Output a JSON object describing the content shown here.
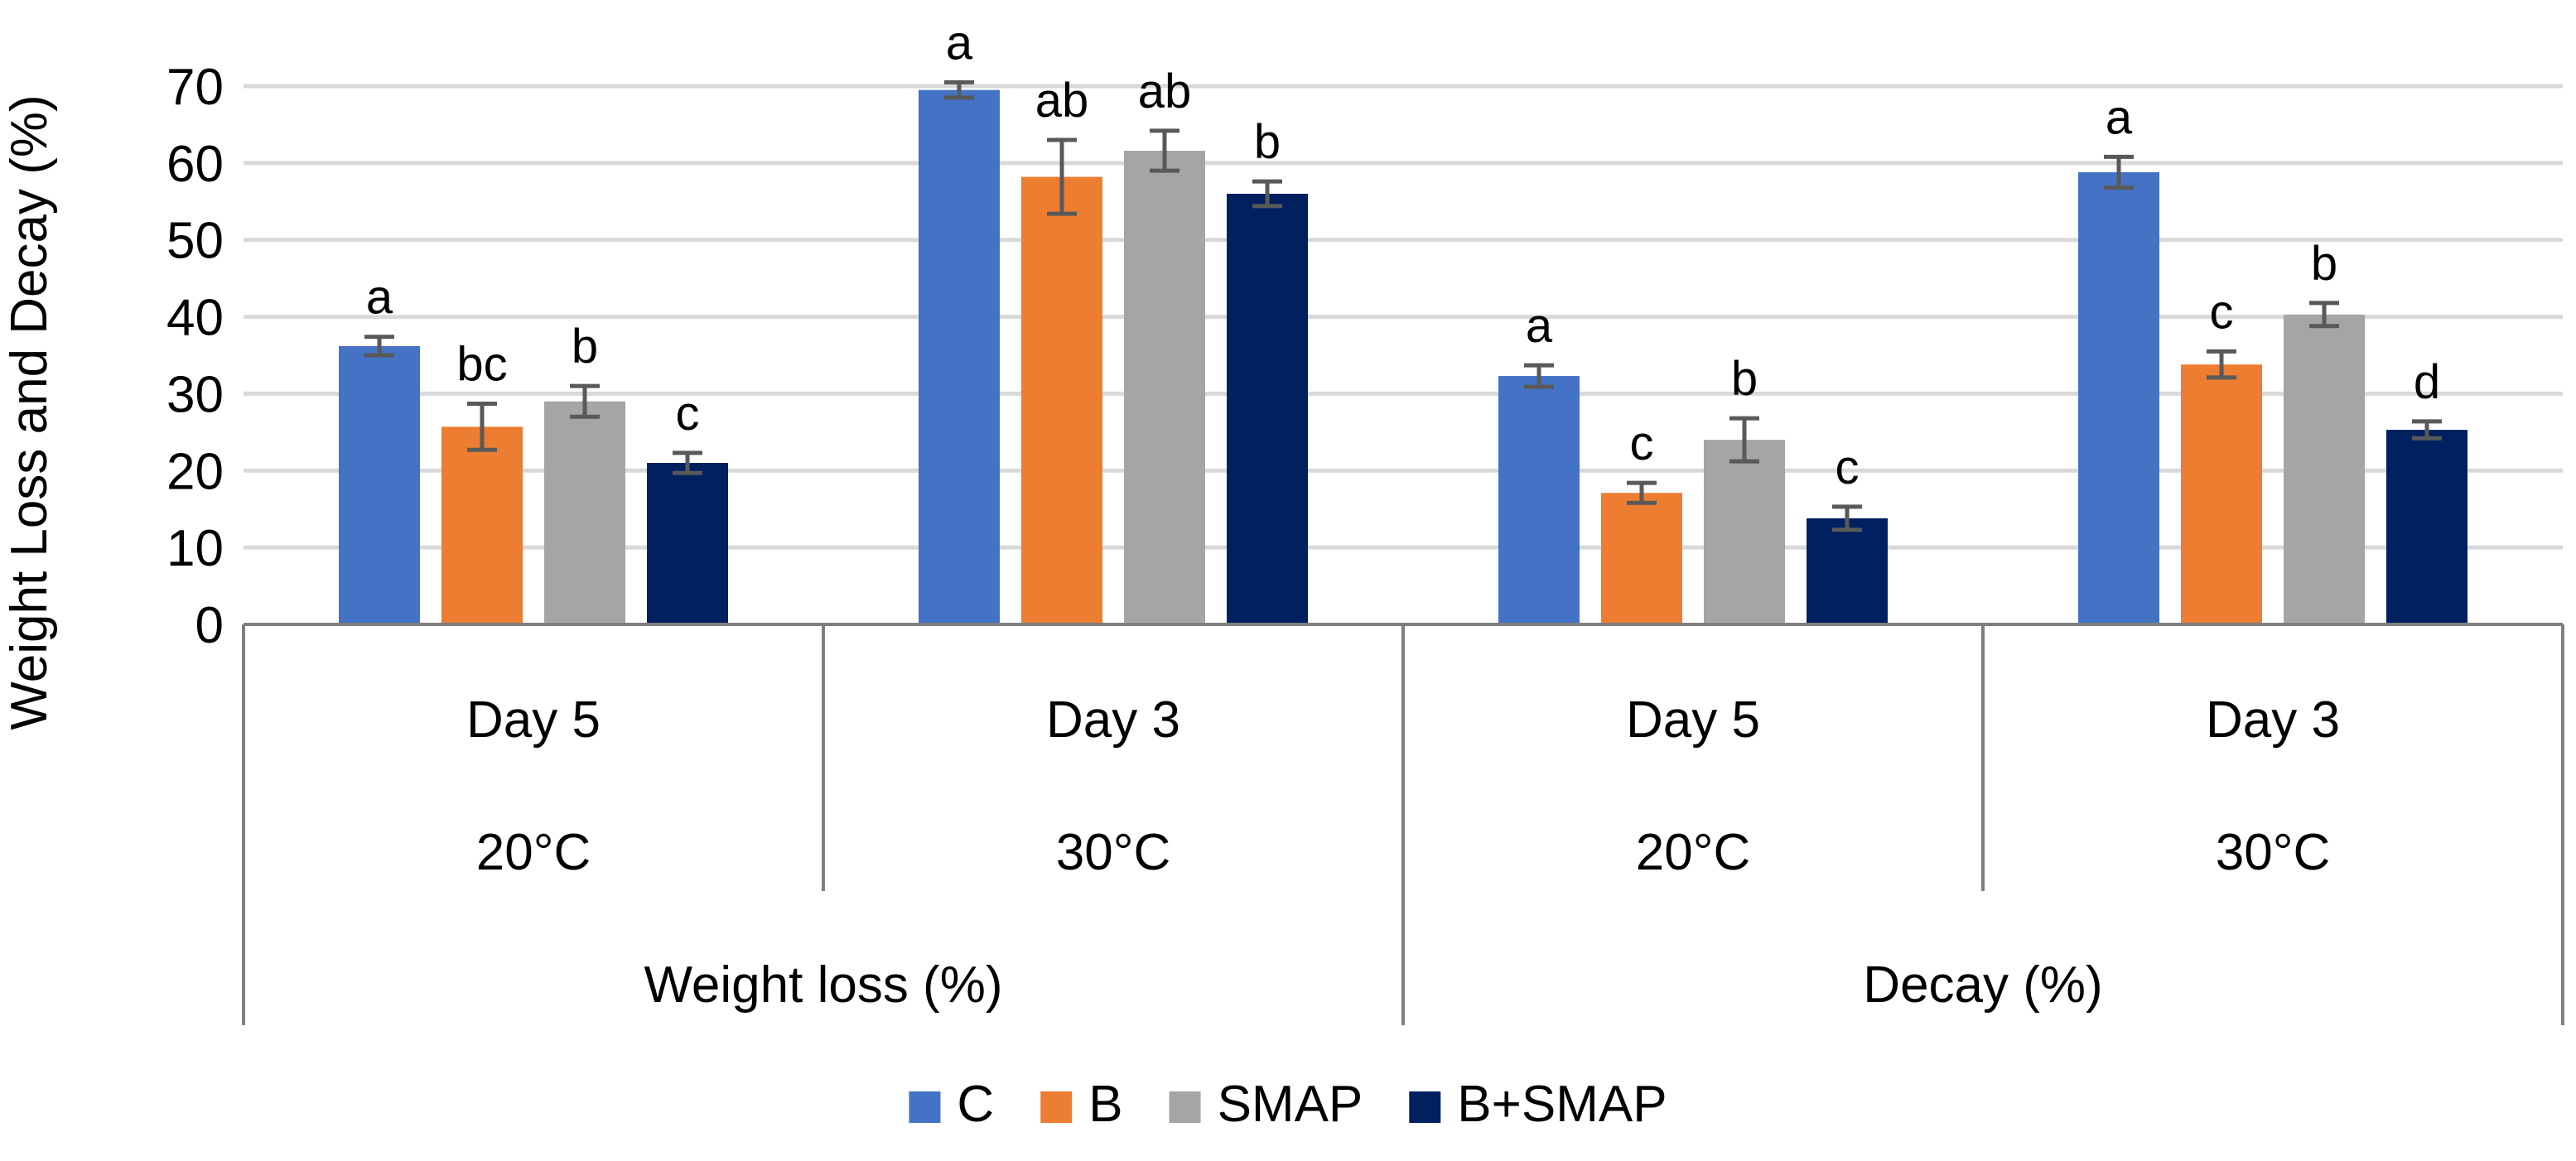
{
  "chart_data": {
    "type": "bar",
    "title": "",
    "xlabel": "",
    "ylabel": "Weight Loss and Decay (%)",
    "ylim": [
      0,
      70
    ],
    "yticks": [
      0,
      10,
      20,
      30,
      40,
      50,
      60,
      70
    ],
    "grid": "horizontal",
    "legend_position": "bottom",
    "groups": [
      {
        "metric": "Weight loss (%)",
        "temperature": "20°C",
        "day": "Day 5"
      },
      {
        "metric": "Weight loss (%)",
        "temperature": "30°C",
        "day": "Day 3"
      },
      {
        "metric": "Decay (%)",
        "temperature": "20°C",
        "day": "Day 5"
      },
      {
        "metric": "Decay (%)",
        "temperature": "30°C",
        "day": "Day 3"
      }
    ],
    "metrics": [
      "Weight loss (%)",
      "Decay (%)"
    ],
    "temperatures": [
      "20°C",
      "30°C",
      "20°C",
      "30°C"
    ],
    "days": [
      "Day 5",
      "Day 3",
      "Day 5",
      "Day 3"
    ],
    "series": [
      {
        "name": "C",
        "color": "#4472C4",
        "values": [
          36.2,
          69.5,
          32.3,
          58.8
        ],
        "errors": [
          1.2,
          1.0,
          1.4,
          2.0
        ],
        "letters": [
          "a",
          "a",
          "a",
          "a"
        ]
      },
      {
        "name": "B",
        "color": "#ED7D31",
        "values": [
          25.7,
          58.2,
          17.1,
          33.8
        ],
        "errors": [
          3.0,
          4.8,
          1.3,
          1.7
        ],
        "letters": [
          "bc",
          "ab",
          "c",
          "c"
        ]
      },
      {
        "name": "SMAP",
        "color": "#A5A5A5",
        "values": [
          29.0,
          61.6,
          24.0,
          40.3
        ],
        "errors": [
          2.0,
          2.6,
          2.8,
          1.5
        ],
        "letters": [
          "b",
          "ab",
          "b",
          "b"
        ]
      },
      {
        "name": "B+SMAP",
        "color": "#002060",
        "values": [
          21.0,
          56.0,
          13.8,
          25.3
        ],
        "errors": [
          1.3,
          1.6,
          1.5,
          1.1
        ],
        "letters": [
          "c",
          "b",
          "c",
          "d"
        ]
      }
    ],
    "error_bar_color": "#595959",
    "gridline_color": "#D9D9D9",
    "axis_line_color": "#7F7F7F"
  }
}
